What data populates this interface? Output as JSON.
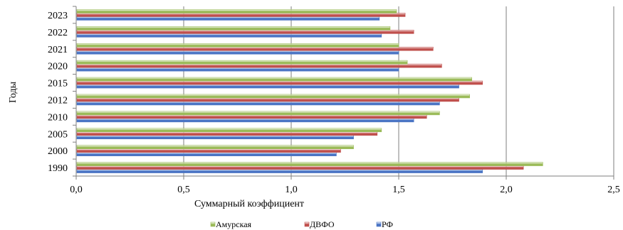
{
  "chart_data": {
    "type": "bar",
    "orientation": "horizontal",
    "categories": [
      "1990",
      "2000",
      "2005",
      "2010",
      "2012",
      "2015",
      "2020",
      "2021",
      "2022",
      "2023"
    ],
    "series": [
      {
        "name": "РФ",
        "color": "#4a74c4",
        "values": [
          1.89,
          1.21,
          1.29,
          1.57,
          1.69,
          1.78,
          1.5,
          1.5,
          1.42,
          1.41
        ]
      },
      {
        "name": "ДВФО",
        "color": "#c0504d",
        "values": [
          2.08,
          1.23,
          1.4,
          1.63,
          1.78,
          1.89,
          1.7,
          1.66,
          1.57,
          1.53
        ]
      },
      {
        "name": "Амурская",
        "color": "#9bbb59",
        "values": [
          2.17,
          1.29,
          1.42,
          1.69,
          1.83,
          1.84,
          1.54,
          1.5,
          1.46,
          1.49
        ]
      }
    ],
    "legend_order": [
      "Амурская",
      "ДВФО",
      "РФ"
    ],
    "xlim": [
      0,
      2.5
    ],
    "x_ticks": [
      "0,0",
      "0,5",
      "1,0",
      "1,5",
      "2,0",
      "2,5"
    ],
    "xlabel": "Суммарный коэффициент",
    "ylabel": "Годы",
    "grid": "vertical",
    "legend_position": "bottom"
  }
}
